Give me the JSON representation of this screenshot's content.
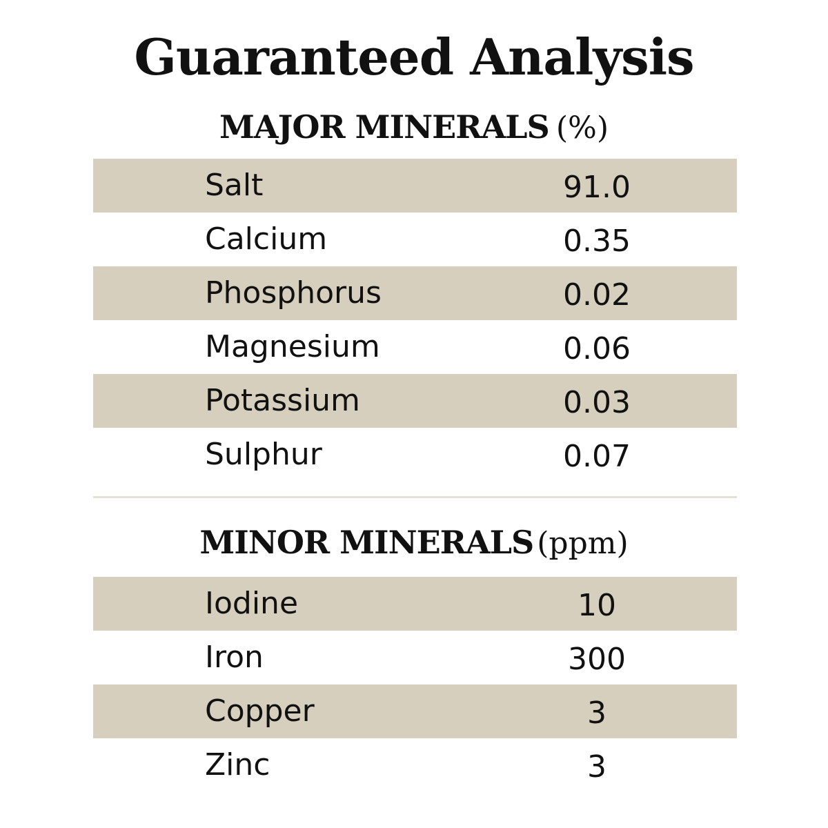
{
  "title": "Guaranteed Analysis",
  "major": {
    "heading": "MAJOR MINERALS",
    "unit": "(%)",
    "rows": [
      {
        "name": "Salt",
        "value": "91.0"
      },
      {
        "name": "Calcium",
        "value": "0.35"
      },
      {
        "name": "Phosphorus",
        "value": "0.02"
      },
      {
        "name": "Magnesium",
        "value": "0.06"
      },
      {
        "name": "Potassium",
        "value": "0.03"
      },
      {
        "name": "Sulphur",
        "value": "0.07"
      }
    ]
  },
  "minor": {
    "heading": "MINOR MINERALS",
    "unit": "(ppm)",
    "rows": [
      {
        "name": "Iodine",
        "value": "10"
      },
      {
        "name": "Iron",
        "value": "300"
      },
      {
        "name": "Copper",
        "value": "3"
      },
      {
        "name": "Zinc",
        "value": "3"
      }
    ]
  },
  "colors": {
    "shade": "#d7cfbd",
    "text": "#111111",
    "divider": "#e4e0d6"
  }
}
